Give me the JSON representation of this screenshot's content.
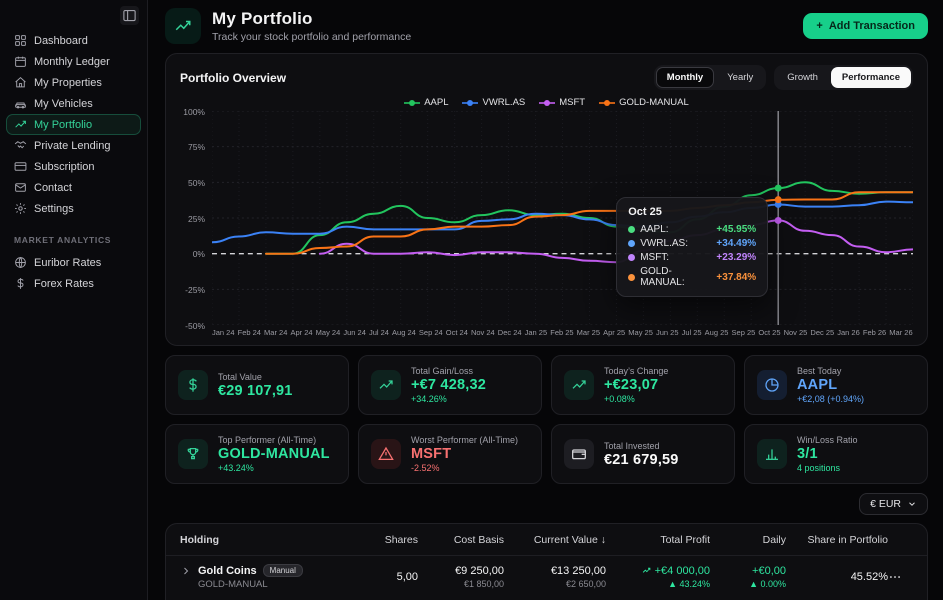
{
  "sidebar": {
    "items": [
      {
        "label": "Dashboard"
      },
      {
        "label": "Monthly Ledger"
      },
      {
        "label": "My Properties"
      },
      {
        "label": "My Vehicles"
      },
      {
        "label": "My Portfolio"
      },
      {
        "label": "Private Lending"
      },
      {
        "label": "Subscription"
      },
      {
        "label": "Contact"
      },
      {
        "label": "Settings"
      }
    ],
    "section_label": "MARKET ANALYTICS",
    "analytics_items": [
      {
        "label": "Euribor Rates"
      },
      {
        "label": "Forex Rates"
      }
    ]
  },
  "header": {
    "title": "My Portfolio",
    "subtitle": "Track your stock portfolio and performance",
    "add_button": {
      "icon": "+",
      "label": "Add Transaction"
    }
  },
  "overview": {
    "title": "Portfolio Overview",
    "period_toggle": {
      "options": [
        "Monthly",
        "Yearly"
      ],
      "active": "Monthly"
    },
    "mode_toggle": {
      "options": [
        "Growth",
        "Performance"
      ],
      "active": "Performance"
    }
  },
  "chart_data": {
    "type": "line",
    "title": "Portfolio Overview",
    "legend_position": "top",
    "ylim": [
      -50,
      100
    ],
    "yticks": [
      100,
      75,
      50,
      25,
      0,
      -25,
      -50
    ],
    "ytick_suffix": "%",
    "zero_line_dashed": true,
    "crosshair_label": "Oct 25",
    "x": [
      "Jan 24",
      "Feb 24",
      "Mar 24",
      "Apr 24",
      "May 24",
      "Jun 24",
      "Jul 24",
      "Aug 24",
      "Sep 24",
      "Oct 24",
      "Nov 24",
      "Dec 24",
      "Jan 25",
      "Feb 25",
      "Mar 25",
      "Apr 25",
      "May 25",
      "Jun 25",
      "Jul 25",
      "Aug 25",
      "Sep 25",
      "Oct 25",
      "Nov 25",
      "Dec 25",
      "Jan 26",
      "Feb 26",
      "Mar 26"
    ],
    "series": [
      {
        "name": "AAPL",
        "color": "#22c55e",
        "values": [
          null,
          null,
          0,
          0,
          13,
          22,
          28,
          33.5,
          25,
          22,
          27,
          30.5,
          27,
          28,
          25,
          19,
          16,
          15,
          24,
          33,
          41,
          45.95,
          50,
          44,
          42,
          43,
          43
        ]
      },
      {
        "name": "VWRL.AS",
        "color": "#3b82f6",
        "values": [
          8,
          12,
          15,
          14,
          14,
          19,
          17,
          17,
          17,
          17,
          23,
          24,
          28,
          27,
          24,
          20,
          19,
          22,
          26,
          29,
          32,
          34.49,
          33,
          33,
          34,
          36.5,
          36
        ]
      },
      {
        "name": "MSFT",
        "color": "#c45ef2",
        "values": [
          null,
          null,
          null,
          null,
          0,
          7,
          0,
          0,
          1,
          -1,
          1,
          1,
          0,
          -3,
          -5,
          -6,
          2,
          9,
          13,
          17,
          20,
          23.29,
          16,
          13,
          5,
          1,
          3
        ]
      },
      {
        "name": "GOLD-MANUAL",
        "color": "#f97316",
        "values": [
          null,
          null,
          0,
          0,
          4,
          5,
          12,
          12,
          17,
          19,
          19,
          20,
          26,
          27,
          30,
          30,
          30,
          30,
          32,
          34,
          36,
          37.84,
          38,
          38,
          43,
          43,
          43
        ]
      }
    ]
  },
  "tooltip": {
    "date": "Oct 25",
    "rows": [
      {
        "label": "AAPL:",
        "value": "+45.95%",
        "color": "#4ade80"
      },
      {
        "label": "VWRL.AS:",
        "value": "+34.49%",
        "color": "#60a5fa"
      },
      {
        "label": "MSFT:",
        "value": "+23.29%",
        "color": "#c084fc"
      },
      {
        "label": "GOLD-MANUAL:",
        "value": "+37.84%",
        "color": "#fb923c"
      }
    ]
  },
  "stats": [
    {
      "label": "Total Value",
      "value": "€29 107,91",
      "sub": ""
    },
    {
      "label": "Total Gain/Loss",
      "value": "+€7 428,32",
      "sub": "+34.26%"
    },
    {
      "label": "Today’s Change",
      "value": "+€23,07",
      "sub": "+0.08%"
    },
    {
      "label": "Best Today",
      "value": "AAPL",
      "sub": "+€2,08 (+0.94%)"
    },
    {
      "label": "Top Performer (All-Time)",
      "value": "GOLD-MANUAL",
      "sub": "+43.24%"
    },
    {
      "label": "Worst Performer (All-Time)",
      "value": "MSFT",
      "sub": "-2.52%"
    },
    {
      "label": "Total Invested",
      "value": "€21 679,59",
      "sub": ""
    },
    {
      "label": "Win/Loss Ratio",
      "value": "3/1",
      "sub": "4 positions"
    }
  ],
  "currency_selector": {
    "label": "€ EUR"
  },
  "table": {
    "columns": [
      "Holding",
      "Shares",
      "Cost Basis",
      "Current Value ↓",
      "Total Profit",
      "Daily",
      "Share in Portfolio"
    ],
    "rows": [
      {
        "name": "Gold Coins",
        "badge": "Manual",
        "symbol": "GOLD-MANUAL",
        "shares": "5,00",
        "cost_basis": "€9 250,00",
        "cost_basis_sub": "€1 850,00",
        "current_value": "€13 250,00",
        "current_value_sub": "€2 650,00",
        "total_profit": "+€4 000,00",
        "total_profit_sub": "▲ 43.24%",
        "daily": "+€0,00",
        "daily_sub": "▲ 0.00%",
        "share_in_portfolio": "45.52%"
      }
    ]
  }
}
